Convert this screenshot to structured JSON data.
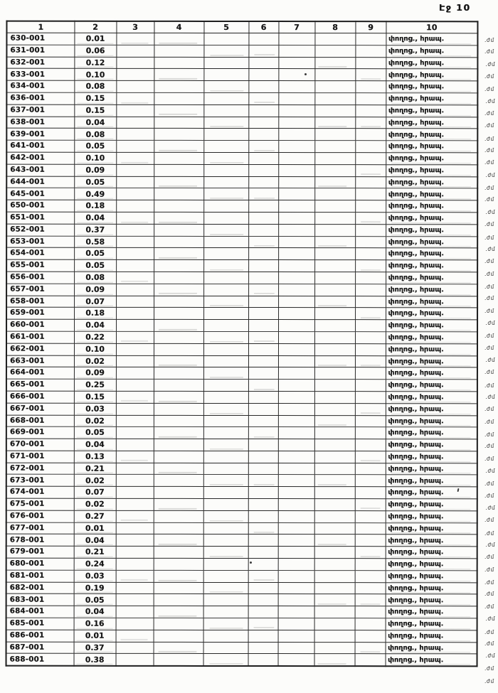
{
  "page": {
    "label": "Էջ 10"
  },
  "margin": {
    "fragment": ".ժմ"
  },
  "table": {
    "headers": [
      "1",
      "2",
      "3",
      "4",
      "5",
      "6",
      "7",
      "8",
      "9",
      "10"
    ],
    "usage_label": "փողոց., հրապ.",
    "rows": [
      {
        "id": "630-001",
        "value": "0.01"
      },
      {
        "id": "631-001",
        "value": "0.06"
      },
      {
        "id": "632-001",
        "value": "0.12"
      },
      {
        "id": "633-001",
        "value": "0.10"
      },
      {
        "id": "634-001",
        "value": "0.08"
      },
      {
        "id": "636-001",
        "value": "0.15"
      },
      {
        "id": "637-001",
        "value": "0.15"
      },
      {
        "id": "638-001",
        "value": "0.04"
      },
      {
        "id": "639-001",
        "value": "0.08"
      },
      {
        "id": "641-001",
        "value": "0.05"
      },
      {
        "id": "642-001",
        "value": "0.10"
      },
      {
        "id": "643-001",
        "value": "0.09"
      },
      {
        "id": "644-001",
        "value": "0.05"
      },
      {
        "id": "645-001",
        "value": "0.49"
      },
      {
        "id": "650-001",
        "value": "0.18"
      },
      {
        "id": "651-001",
        "value": "0.04"
      },
      {
        "id": "652-001",
        "value": "0.37"
      },
      {
        "id": "653-001",
        "value": "0.58"
      },
      {
        "id": "654-001",
        "value": "0.05"
      },
      {
        "id": "655-001",
        "value": "0.05"
      },
      {
        "id": "656-001",
        "value": "0.08"
      },
      {
        "id": "657-001",
        "value": "0.09"
      },
      {
        "id": "658-001",
        "value": "0.07"
      },
      {
        "id": "659-001",
        "value": "0.18"
      },
      {
        "id": "660-001",
        "value": "0.04"
      },
      {
        "id": "661-001",
        "value": "0.22"
      },
      {
        "id": "662-001",
        "value": "0.10"
      },
      {
        "id": "663-001",
        "value": "0.02"
      },
      {
        "id": "664-001",
        "value": "0.09"
      },
      {
        "id": "665-001",
        "value": "0.25"
      },
      {
        "id": "666-001",
        "value": "0.15"
      },
      {
        "id": "667-001",
        "value": "0.03"
      },
      {
        "id": "668-001",
        "value": "0.02"
      },
      {
        "id": "669-001",
        "value": "0.05"
      },
      {
        "id": "670-001",
        "value": "0.04"
      },
      {
        "id": "671-001",
        "value": "0.13"
      },
      {
        "id": "672-001",
        "value": "0.21"
      },
      {
        "id": "673-001",
        "value": "0.02"
      },
      {
        "id": "674-001",
        "value": "0.07"
      },
      {
        "id": "675-001",
        "value": "0.02"
      },
      {
        "id": "676-001",
        "value": "0.27"
      },
      {
        "id": "677-001",
        "value": "0.01"
      },
      {
        "id": "678-001",
        "value": "0.04"
      },
      {
        "id": "679-001",
        "value": "0.21"
      },
      {
        "id": "680-001",
        "value": "0.24"
      },
      {
        "id": "681-001",
        "value": "0.03"
      },
      {
        "id": "682-001",
        "value": "0.19"
      },
      {
        "id": "683-001",
        "value": "0.05"
      },
      {
        "id": "684-001",
        "value": "0.04"
      },
      {
        "id": "685-001",
        "value": "0.16"
      },
      {
        "id": "686-001",
        "value": "0.01"
      },
      {
        "id": "687-001",
        "value": "0.37"
      },
      {
        "id": "688-001",
        "value": "0.38"
      }
    ]
  }
}
